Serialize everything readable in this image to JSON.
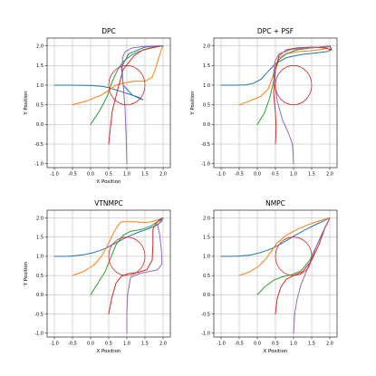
{
  "chart_data": [
    {
      "type": "line",
      "title": "DPC",
      "xlabel": "X Position",
      "ylabel": "Y Position",
      "xlim": [
        -1.2,
        2.2
      ],
      "ylim": [
        -1.1,
        2.2
      ],
      "xticks": [
        -1.0,
        -0.5,
        0.0,
        0.5,
        1.0,
        1.5,
        2.0
      ],
      "yticks": [
        -1.0,
        -0.5,
        0.0,
        0.5,
        1.0,
        1.5,
        2.0
      ],
      "grid": true,
      "obstacle": {
        "cx": 1.0,
        "cy": 1.0,
        "r": 0.5,
        "color": "#d62728"
      },
      "series": [
        {
          "color": "#1f77b4",
          "x": [
            -1.0,
            -0.5,
            0.0,
            0.3,
            0.5,
            0.7,
            0.9,
            1.1,
            1.3,
            1.45,
            1.35,
            1.15,
            0.9,
            0.85,
            1.05,
            1.5,
            1.9,
            2.0
          ],
          "y": [
            1.0,
            1.0,
            0.99,
            0.97,
            0.94,
            0.88,
            0.82,
            0.76,
            0.7,
            0.63,
            0.66,
            0.75,
            1.0,
            1.45,
            1.8,
            1.97,
            2.0,
            2.0
          ]
        },
        {
          "color": "#ff7f0e",
          "x": [
            -0.5,
            -0.1,
            0.3,
            0.55,
            0.7,
            0.9,
            1.2,
            1.5,
            1.7,
            1.8,
            1.88,
            1.95,
            2.0
          ],
          "y": [
            0.5,
            0.6,
            0.75,
            0.9,
            1.0,
            1.05,
            1.1,
            1.1,
            1.2,
            1.45,
            1.7,
            1.9,
            2.0
          ]
        },
        {
          "color": "#2ca02c",
          "x": [
            0.0,
            0.25,
            0.45,
            0.6,
            0.75,
            0.9,
            1.1,
            1.3,
            1.6,
            1.8,
            2.0
          ],
          "y": [
            0.0,
            0.35,
            0.7,
            1.1,
            1.4,
            1.6,
            1.75,
            1.85,
            1.93,
            1.97,
            2.0
          ]
        },
        {
          "color": "#d62728",
          "x": [
            0.5,
            0.55,
            0.6,
            0.75,
            0.9,
            1.2,
            1.45,
            1.75,
            1.95,
            2.0
          ],
          "y": [
            -0.5,
            -0.05,
            0.35,
            0.9,
            1.4,
            1.75,
            1.9,
            1.97,
            2.0,
            2.0
          ]
        },
        {
          "color": "#9467bd",
          "x": [
            1.0,
            0.98,
            0.95,
            0.9,
            0.87,
            0.88,
            0.95,
            1.15,
            1.5,
            1.9,
            2.0
          ],
          "y": [
            -1.0,
            -0.3,
            0.4,
            1.0,
            1.4,
            1.7,
            1.85,
            1.95,
            1.99,
            2.0,
            2.0
          ]
        }
      ]
    },
    {
      "type": "line",
      "title": "DPC + PSF",
      "xlabel": "",
      "ylabel": "Y Position",
      "xlim": [
        -1.2,
        2.2
      ],
      "ylim": [
        -1.1,
        2.2
      ],
      "xticks": [
        -1.0,
        -0.5,
        0.0,
        0.5,
        1.0,
        1.5,
        2.0
      ],
      "yticks": [
        -1.0,
        -0.5,
        0.0,
        0.5,
        1.0,
        1.5,
        2.0
      ],
      "grid": true,
      "obstacle": {
        "cx": 1.0,
        "cy": 1.0,
        "r": 0.5,
        "color": "#d62728"
      },
      "series": [
        {
          "color": "#1f77b4",
          "x": [
            -1.0,
            -0.6,
            -0.3,
            -0.1,
            0.1,
            0.3,
            0.5,
            0.8,
            1.2,
            1.6,
            1.9,
            2.05,
            2.0
          ],
          "y": [
            1.0,
            1.0,
            1.01,
            1.05,
            1.15,
            1.35,
            1.55,
            1.7,
            1.78,
            1.82,
            1.85,
            1.9,
            2.0
          ]
        },
        {
          "color": "#ff7f0e",
          "x": [
            -0.5,
            -0.2,
            0.1,
            0.3,
            0.42,
            0.5,
            0.6,
            0.8,
            1.1,
            1.5,
            1.85,
            2.0
          ],
          "y": [
            0.5,
            0.6,
            0.72,
            0.9,
            1.2,
            1.5,
            1.7,
            1.8,
            1.85,
            1.88,
            1.92,
            2.0
          ]
        },
        {
          "color": "#2ca02c",
          "x": [
            0.0,
            0.2,
            0.35,
            0.45,
            0.5,
            0.6,
            0.8,
            1.1,
            1.5,
            1.85,
            2.0
          ],
          "y": [
            0.0,
            0.3,
            0.7,
            1.1,
            1.4,
            1.65,
            1.8,
            1.9,
            1.95,
            1.97,
            2.0
          ]
        },
        {
          "color": "#d62728",
          "x": [
            0.5,
            0.52,
            0.5,
            0.45,
            0.5,
            0.6,
            0.8,
            1.1,
            1.5,
            1.85,
            2.05,
            2.0
          ],
          "y": [
            -0.5,
            -0.1,
            0.3,
            0.8,
            1.4,
            1.75,
            1.9,
            1.95,
            1.97,
            1.95,
            1.9,
            2.0
          ]
        },
        {
          "color": "#9467bd",
          "x": [
            1.0,
            0.97,
            0.85,
            0.7,
            0.55,
            0.45,
            0.48,
            0.6,
            0.9,
            1.3,
            1.7,
            2.0
          ],
          "y": [
            -1.0,
            -0.5,
            -0.2,
            0.1,
            0.6,
            1.2,
            1.6,
            1.8,
            1.9,
            1.95,
            1.97,
            2.0
          ]
        }
      ]
    },
    {
      "type": "line",
      "title": "VTNMPC",
      "xlabel": "X Position",
      "ylabel": "Y Position",
      "xlim": [
        -1.2,
        2.2
      ],
      "ylim": [
        -1.1,
        2.2
      ],
      "xticks": [
        -1.0,
        -0.5,
        0.0,
        0.5,
        1.0,
        1.5,
        2.0
      ],
      "yticks": [
        -1.0,
        -0.5,
        0.0,
        0.5,
        1.0,
        1.5,
        2.0
      ],
      "grid": true,
      "obstacle": {
        "cx": 1.0,
        "cy": 1.0,
        "r": 0.5,
        "color": "#d62728"
      },
      "series": [
        {
          "color": "#1f77b4",
          "x": [
            -1.0,
            -0.6,
            -0.2,
            0.1,
            0.4,
            0.7,
            1.0,
            1.3,
            1.6,
            1.8,
            1.95,
            2.0
          ],
          "y": [
            1.0,
            1.0,
            1.04,
            1.1,
            1.2,
            1.35,
            1.5,
            1.62,
            1.72,
            1.8,
            1.9,
            2.0
          ]
        },
        {
          "color": "#ff7f0e",
          "x": [
            -0.5,
            -0.2,
            0.1,
            0.3,
            0.45,
            0.6,
            0.75,
            0.85,
            1.2,
            1.5,
            1.7,
            1.85,
            2.0
          ],
          "y": [
            0.5,
            0.6,
            0.78,
            1.0,
            1.25,
            1.55,
            1.8,
            1.9,
            1.9,
            1.88,
            1.9,
            1.95,
            2.0
          ]
        },
        {
          "color": "#2ca02c",
          "x": [
            0.0,
            0.2,
            0.4,
            0.55,
            0.7,
            0.9,
            1.1,
            1.4,
            1.65,
            1.85,
            2.0
          ],
          "y": [
            0.0,
            0.3,
            0.6,
            0.95,
            1.3,
            1.55,
            1.65,
            1.7,
            1.78,
            1.9,
            2.0
          ]
        },
        {
          "color": "#d62728",
          "x": [
            0.5,
            0.58,
            0.7,
            0.85,
            1.05,
            1.3,
            1.55,
            1.7,
            1.72,
            1.72,
            1.8,
            1.9,
            2.0
          ],
          "y": [
            -0.5,
            -0.1,
            0.3,
            0.48,
            0.55,
            0.58,
            0.65,
            0.9,
            1.3,
            1.7,
            1.85,
            1.95,
            2.0
          ]
        },
        {
          "color": "#9467bd",
          "x": [
            1.0,
            1.0,
            1.02,
            1.1,
            1.35,
            1.6,
            1.85,
            1.97,
            1.95,
            1.9,
            1.85,
            1.95,
            2.0
          ],
          "y": [
            -1.0,
            -0.5,
            0.0,
            0.45,
            0.55,
            0.6,
            0.65,
            0.8,
            1.2,
            1.6,
            1.8,
            1.95,
            2.0
          ]
        }
      ]
    },
    {
      "type": "line",
      "title": "NMPC",
      "xlabel": "X Position",
      "ylabel": "",
      "xlim": [
        -1.2,
        2.2
      ],
      "ylim": [
        -1.1,
        2.2
      ],
      "xticks": [
        -1.0,
        -0.5,
        0.0,
        0.5,
        1.0,
        1.5,
        2.0
      ],
      "yticks": [
        -1.0,
        -0.5,
        0.0,
        0.5,
        1.0,
        1.5,
        2.0
      ],
      "grid": true,
      "obstacle": {
        "cx": 1.0,
        "cy": 1.0,
        "r": 0.5,
        "color": "#d62728"
      },
      "series": [
        {
          "color": "#1f77b4",
          "x": [
            -1.0,
            -0.6,
            -0.2,
            0.1,
            0.4,
            0.7,
            1.0,
            1.3,
            1.6,
            1.85,
            2.0
          ],
          "y": [
            1.0,
            1.0,
            1.03,
            1.1,
            1.2,
            1.35,
            1.52,
            1.68,
            1.82,
            1.93,
            2.0
          ]
        },
        {
          "color": "#ff7f0e",
          "x": [
            -0.5,
            -0.2,
            0.05,
            0.25,
            0.4,
            0.55,
            0.8,
            1.1,
            1.4,
            1.7,
            2.0
          ],
          "y": [
            0.5,
            0.6,
            0.75,
            0.95,
            1.15,
            1.35,
            1.55,
            1.7,
            1.82,
            1.92,
            2.0
          ]
        },
        {
          "color": "#2ca02c",
          "x": [
            0.0,
            0.2,
            0.45,
            0.7,
            0.95,
            1.2,
            1.45,
            1.65,
            1.85,
            2.0
          ],
          "y": [
            0.0,
            0.2,
            0.38,
            0.47,
            0.52,
            0.62,
            0.9,
            1.3,
            1.7,
            2.0
          ]
        },
        {
          "color": "#d62728",
          "x": [
            0.5,
            0.55,
            0.65,
            0.8,
            1.0,
            1.25,
            1.5,
            1.7,
            1.85,
            2.0
          ],
          "y": [
            -0.5,
            -0.1,
            0.2,
            0.4,
            0.5,
            0.6,
            0.9,
            1.3,
            1.7,
            2.0
          ]
        },
        {
          "color": "#9467bd",
          "x": [
            1.0,
            1.03,
            1.1,
            1.2,
            1.35,
            1.5,
            1.65,
            1.8,
            1.92,
            2.0
          ],
          "y": [
            -1.0,
            -0.5,
            -0.1,
            0.25,
            0.6,
            0.95,
            1.3,
            1.62,
            1.85,
            2.0
          ]
        }
      ]
    }
  ]
}
